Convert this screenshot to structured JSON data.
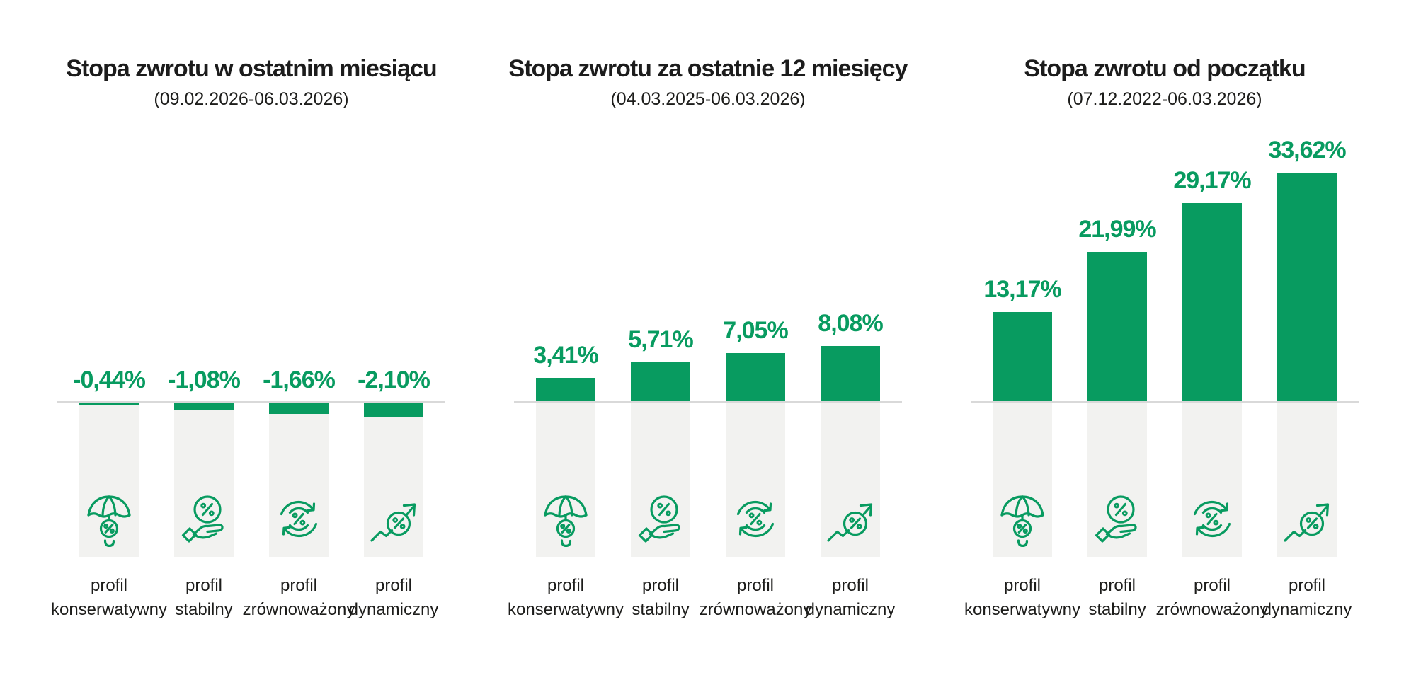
{
  "colors": {
    "accent_green": "#089b60",
    "column_bg": "#f2f2f0",
    "baseline": "#d9d9d9",
    "heading": "#1c1c1c",
    "text": "#1d1d1b",
    "page_bg": "#ffffff"
  },
  "chart_data": [
    {
      "type": "bar",
      "name": "last-month",
      "title": "Stopa zwrotu w ostatnim miesiącu",
      "subtitle": "(09.02.2026-06.03.2026)",
      "categories": [
        "profil konserwatywny",
        "profil stabilny",
        "profil zrównoważony",
        "profil dynamiczny"
      ],
      "category_lines": [
        [
          "profil",
          "konserwatywny"
        ],
        [
          "profil",
          "stabilny"
        ],
        [
          "profil",
          "zrównoważony"
        ],
        [
          "profil",
          "dynamiczny"
        ]
      ],
      "values": [
        -0.44,
        -1.08,
        -1.66,
        -2.1
      ],
      "value_labels": [
        "-0,44%",
        "-1,08%",
        "-1,66%",
        "-2,10%"
      ],
      "icons": [
        "umbrella-percent-icon",
        "hand-percent-icon",
        "cycle-percent-icon",
        "growth-percent-icon"
      ],
      "unit": "%",
      "ylim": [
        -3,
        35
      ],
      "axis_visible": false,
      "grid": false,
      "legend": "none"
    },
    {
      "type": "bar",
      "name": "last-12-months",
      "title": "Stopa zwrotu za ostatnie 12 miesięcy",
      "subtitle": "(04.03.2025-06.03.2026)",
      "categories": [
        "profil konserwatywny",
        "profil stabilny",
        "profil zrównoważony",
        "profil dynamiczny"
      ],
      "category_lines": [
        [
          "profil",
          "konserwatywny"
        ],
        [
          "profil",
          "stabilny"
        ],
        [
          "profil",
          "zrównoważony"
        ],
        [
          "profil",
          "dynamiczny"
        ]
      ],
      "values": [
        3.41,
        5.71,
        7.05,
        8.08
      ],
      "value_labels": [
        "3,41%",
        "5,71%",
        "7,05%",
        "8,08%"
      ],
      "icons": [
        "umbrella-percent-icon",
        "hand-percent-icon",
        "cycle-percent-icon",
        "growth-percent-icon"
      ],
      "unit": "%",
      "ylim": [
        -3,
        35
      ],
      "axis_visible": false,
      "grid": false,
      "legend": "none"
    },
    {
      "type": "bar",
      "name": "since-inception",
      "title": "Stopa zwrotu od początku",
      "subtitle": "(07.12.2022-06.03.2026)",
      "categories": [
        "profil konserwatywny",
        "profil stabilny",
        "profil zrównoważony",
        "profil dynamiczny"
      ],
      "category_lines": [
        [
          "profil",
          "konserwatywny"
        ],
        [
          "profil",
          "stabilny"
        ],
        [
          "profil",
          "zrównoważony"
        ],
        [
          "profil",
          "dynamiczny"
        ]
      ],
      "values": [
        13.17,
        21.99,
        29.17,
        33.62
      ],
      "value_labels": [
        "13,17%",
        "21,99%",
        "29,17%",
        "33,62%"
      ],
      "icons": [
        "umbrella-percent-icon",
        "hand-percent-icon",
        "cycle-percent-icon",
        "growth-percent-icon"
      ],
      "unit": "%",
      "ylim": [
        -3,
        35
      ],
      "axis_visible": false,
      "grid": false,
      "legend": "none"
    }
  ]
}
